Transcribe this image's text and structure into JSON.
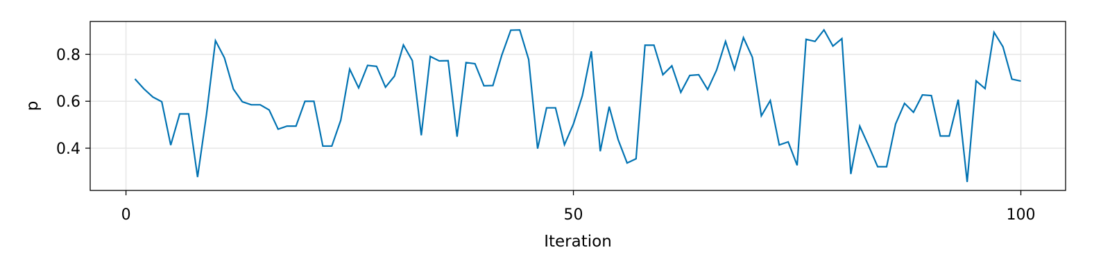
{
  "chart_data": {
    "type": "line",
    "title": "",
    "xlabel": "Iteration",
    "ylabel": "p",
    "xlim": [
      -4,
      105
    ],
    "ylim": [
      0.22,
      0.94
    ],
    "x_ticks": [
      0,
      50,
      100
    ],
    "x_tick_labels": [
      "0",
      "50",
      "100"
    ],
    "y_ticks": [
      0.4,
      0.6,
      0.8
    ],
    "y_tick_labels": [
      "0.4",
      "0.6",
      "0.8"
    ],
    "grid": true,
    "series": [
      {
        "color": "#0072b2",
        "x": [
          1,
          2,
          3,
          4,
          5,
          6,
          7,
          8,
          9,
          10,
          11,
          12,
          13,
          14,
          15,
          16,
          17,
          18,
          19,
          20,
          21,
          22,
          23,
          24,
          25,
          26,
          27,
          28,
          29,
          30,
          31,
          32,
          33,
          34,
          35,
          36,
          37,
          38,
          39,
          40,
          41,
          42,
          43,
          44,
          45,
          46,
          47,
          48,
          49,
          50,
          51,
          52,
          53,
          54,
          55,
          56,
          57,
          58,
          59,
          60,
          61,
          62,
          63,
          64,
          65,
          66,
          67,
          68,
          69,
          70,
          71,
          72,
          73,
          74,
          75,
          76,
          77,
          78,
          79,
          80,
          81,
          82,
          83,
          84,
          85,
          86,
          87,
          88,
          89,
          90,
          91,
          92,
          93,
          94,
          95,
          96,
          97,
          98,
          99,
          100
        ],
        "y": [
          0.695,
          0.653,
          0.618,
          0.598,
          0.413,
          0.546,
          0.546,
          0.277,
          0.545,
          0.858,
          0.785,
          0.652,
          0.598,
          0.585,
          0.585,
          0.563,
          0.481,
          0.494,
          0.494,
          0.6,
          0.6,
          0.409,
          0.409,
          0.519,
          0.737,
          0.657,
          0.753,
          0.749,
          0.66,
          0.707,
          0.84,
          0.773,
          0.455,
          0.791,
          0.772,
          0.773,
          0.449,
          0.765,
          0.76,
          0.666,
          0.667,
          0.797,
          0.903,
          0.904,
          0.778,
          0.398,
          0.572,
          0.572,
          0.415,
          0.503,
          0.624,
          0.813,
          0.387,
          0.577,
          0.436,
          0.337,
          0.355,
          0.839,
          0.839,
          0.713,
          0.751,
          0.638,
          0.71,
          0.713,
          0.65,
          0.733,
          0.855,
          0.736,
          0.871,
          0.787,
          0.538,
          0.603,
          0.414,
          0.427,
          0.327,
          0.864,
          0.855,
          0.904,
          0.835,
          0.867,
          0.29,
          0.494,
          0.409,
          0.321,
          0.321,
          0.503,
          0.591,
          0.553,
          0.627,
          0.624,
          0.452,
          0.452,
          0.607,
          0.256,
          0.687,
          0.654,
          0.894,
          0.832,
          0.694,
          0.686
        ]
      }
    ]
  }
}
